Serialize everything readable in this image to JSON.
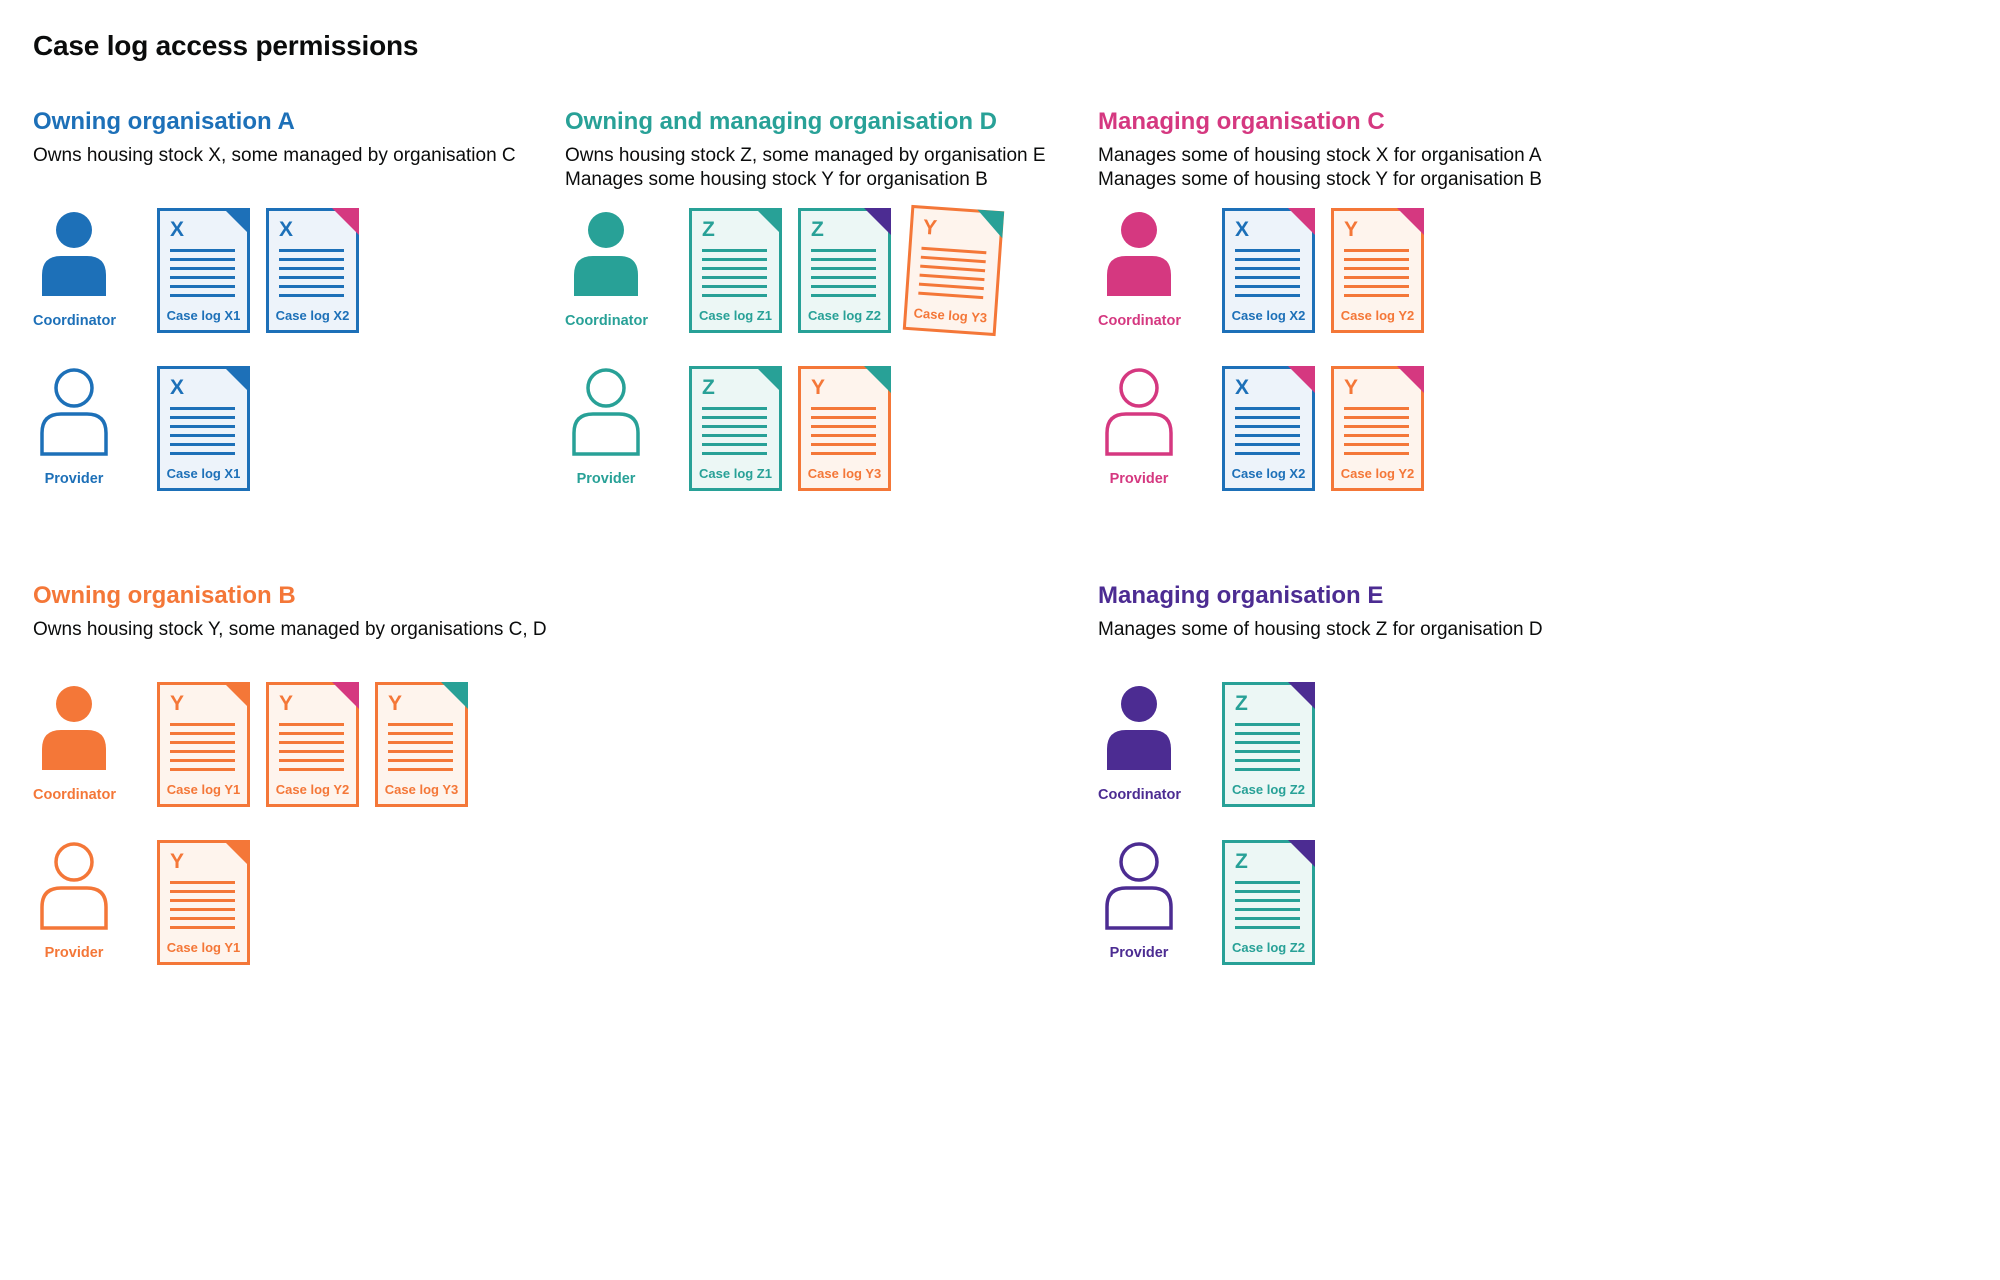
{
  "title": "Case log access permissions",
  "colors": {
    "blue": "#1d70b8",
    "teal": "#28a197",
    "pink": "#d53880",
    "orange": "#f47738",
    "purple": "#4c2c92",
    "blue_tint": "#edf3fa",
    "teal_tint": "#ecf7f5",
    "orange_tint": "#fef4ed"
  },
  "sections": [
    {
      "name": "owning-organisation-a",
      "heading": "Owning organisation A",
      "color": "blue",
      "description": [
        "Owns housing stock X, some managed by organisation C"
      ],
      "rows": [
        {
          "role": "Coordinator",
          "style": "filled",
          "docs": [
            {
              "letter": "X",
              "label": "Case log X1",
              "body": "blue",
              "corner": "blue"
            },
            {
              "letter": "X",
              "label": "Case log X2",
              "body": "blue",
              "corner": "pink"
            }
          ]
        },
        {
          "role": "Provider",
          "style": "outline",
          "docs": [
            {
              "letter": "X",
              "label": "Case log X1",
              "body": "blue",
              "corner": "blue"
            }
          ]
        }
      ]
    },
    {
      "name": "owning-and-managing-organisation-d",
      "heading": "Owning and managing organisation D",
      "color": "teal",
      "description": [
        "Owns housing stock Z, some managed by organisation E",
        "Manages some housing stock Y for organisation B"
      ],
      "rows": [
        {
          "role": "Coordinator",
          "style": "filled",
          "docs": [
            {
              "letter": "Z",
              "label": "Case log Z1",
              "body": "teal",
              "corner": "teal"
            },
            {
              "letter": "Z",
              "label": "Case log Z2",
              "body": "teal",
              "corner": "purple"
            },
            {
              "letter": "Y",
              "label": "Case log Y3",
              "body": "orange",
              "corner": "teal",
              "rotate": 4
            }
          ]
        },
        {
          "role": "Provider",
          "style": "outline",
          "docs": [
            {
              "letter": "Z",
              "label": "Case log Z1",
              "body": "teal",
              "corner": "teal"
            },
            {
              "letter": "Y",
              "label": "Case log Y3",
              "body": "orange",
              "corner": "teal"
            }
          ]
        }
      ]
    },
    {
      "name": "managing-organisation-c",
      "heading": "Managing organisation C",
      "color": "pink",
      "description": [
        "Manages some of housing stock X for organisation A",
        "Manages some of housing stock Y for organisation B"
      ],
      "rows": [
        {
          "role": "Coordinator",
          "style": "filled",
          "docs": [
            {
              "letter": "X",
              "label": "Case log X2",
              "body": "blue",
              "corner": "pink"
            },
            {
              "letter": "Y",
              "label": "Case log Y2",
              "body": "orange",
              "corner": "pink"
            }
          ]
        },
        {
          "role": "Provider",
          "style": "outline",
          "docs": [
            {
              "letter": "X",
              "label": "Case log X2",
              "body": "blue",
              "corner": "pink"
            },
            {
              "letter": "Y",
              "label": "Case log Y2",
              "body": "orange",
              "corner": "pink"
            }
          ]
        }
      ]
    },
    {
      "name": "owning-organisation-b",
      "heading": "Owning organisation B",
      "color": "orange",
      "description": [
        "Owns housing stock Y, some managed by organisations C, D"
      ],
      "rows": [
        {
          "role": "Coordinator",
          "style": "filled",
          "docs": [
            {
              "letter": "Y",
              "label": "Case log Y1",
              "body": "orange",
              "corner": "orange"
            },
            {
              "letter": "Y",
              "label": "Case log Y2",
              "body": "orange",
              "corner": "pink"
            },
            {
              "letter": "Y",
              "label": "Case log Y3",
              "body": "orange",
              "corner": "teal"
            }
          ]
        },
        {
          "role": "Provider",
          "style": "outline",
          "docs": [
            {
              "letter": "Y",
              "label": "Case log Y1",
              "body": "orange",
              "corner": "orange"
            }
          ]
        }
      ]
    },
    {
      "name": "managing-organisation-e",
      "heading": "Managing organisation E",
      "color": "purple",
      "description": [
        "Manages some of housing stock Z for organisation D"
      ],
      "rows": [
        {
          "role": "Coordinator",
          "style": "filled",
          "docs": [
            {
              "letter": "Z",
              "label": "Case log Z2",
              "body": "teal",
              "corner": "purple"
            }
          ]
        },
        {
          "role": "Provider",
          "style": "outline",
          "docs": [
            {
              "letter": "Z",
              "label": "Case log Z2",
              "body": "teal",
              "corner": "purple"
            }
          ]
        }
      ]
    }
  ]
}
